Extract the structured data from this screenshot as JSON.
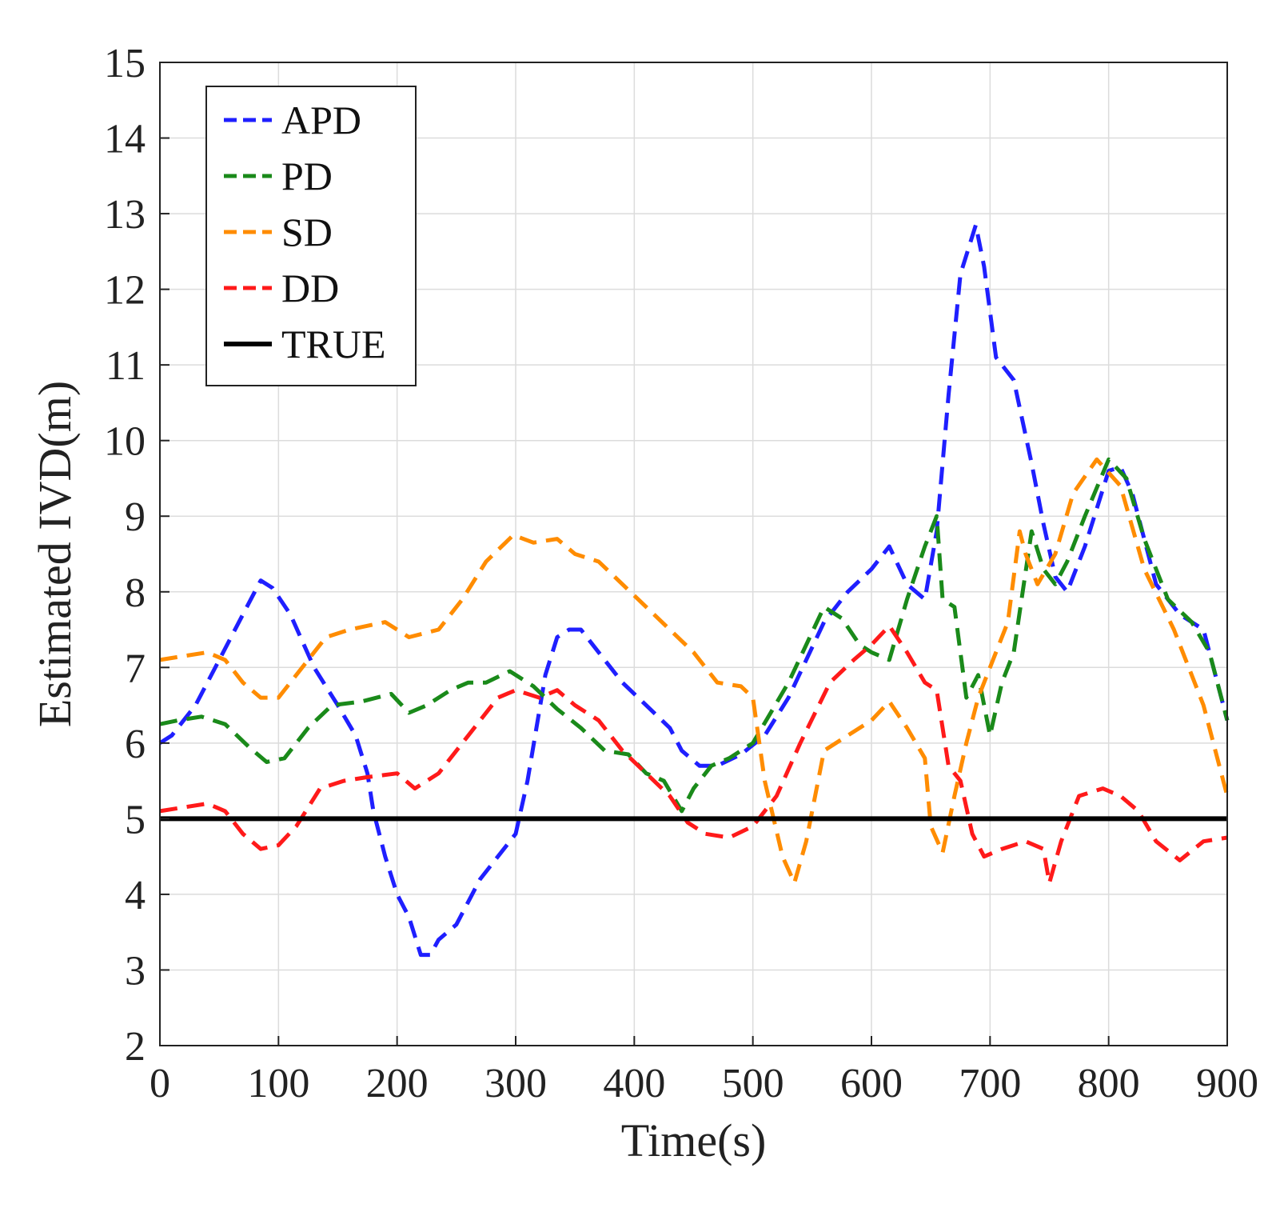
{
  "chart_data": {
    "type": "line",
    "xlabel": "Time(s)",
    "ylabel": "Estimated IVD(m)",
    "xlim": [
      0,
      900
    ],
    "ylim": [
      2,
      15
    ],
    "x_ticks": [
      0,
      100,
      200,
      300,
      400,
      500,
      600,
      700,
      800,
      900
    ],
    "y_ticks": [
      2,
      3,
      4,
      5,
      6,
      7,
      8,
      9,
      10,
      11,
      12,
      13,
      14,
      15
    ],
    "grid": true,
    "legend_position": "top-left",
    "series": [
      {
        "name": "APD",
        "color": "#1f1fff",
        "style": "dashed",
        "x": [
          0,
          10,
          30,
          50,
          70,
          85,
          95,
          110,
          130,
          150,
          165,
          175,
          180,
          190,
          200,
          210,
          220,
          228,
          235,
          250,
          270,
          290,
          300,
          310,
          325,
          335,
          345,
          355,
          370,
          390,
          410,
          430,
          440,
          455,
          470,
          490,
          510,
          530,
          560,
          580,
          600,
          615,
          630,
          645,
          655,
          665,
          675,
          688,
          695,
          705,
          720,
          735,
          745,
          755,
          765,
          780,
          800,
          810,
          820,
          840,
          860,
          880,
          900
        ],
        "y": [
          6.0,
          6.1,
          6.5,
          7.1,
          7.7,
          8.15,
          8.05,
          7.7,
          7.0,
          6.5,
          6.1,
          5.6,
          5.1,
          4.5,
          4.0,
          3.7,
          3.2,
          3.2,
          3.4,
          3.6,
          4.2,
          4.6,
          4.8,
          5.5,
          6.9,
          7.4,
          7.5,
          7.5,
          7.2,
          6.8,
          6.5,
          6.2,
          5.9,
          5.7,
          5.7,
          5.85,
          6.1,
          6.6,
          7.6,
          8.0,
          8.3,
          8.6,
          8.1,
          7.9,
          8.8,
          10.6,
          12.2,
          12.85,
          12.3,
          11.1,
          10.8,
          9.7,
          8.9,
          8.2,
          8.0,
          8.6,
          9.6,
          9.65,
          9.3,
          8.1,
          7.7,
          7.5,
          6.3
        ]
      },
      {
        "name": "PD",
        "color": "#1a8a1a",
        "style": "dashed",
        "x": [
          0,
          15,
          35,
          55,
          75,
          90,
          105,
          125,
          145,
          170,
          195,
          210,
          225,
          245,
          260,
          275,
          295,
          315,
          335,
          355,
          375,
          395,
          410,
          425,
          440,
          450,
          465,
          480,
          500,
          530,
          560,
          575,
          590,
          600,
          615,
          630,
          645,
          655,
          660,
          670,
          680,
          690,
          700,
          710,
          720,
          735,
          745,
          755,
          765,
          780,
          800,
          815,
          830,
          850,
          870,
          885,
          900
        ],
        "y": [
          6.25,
          6.3,
          6.35,
          6.25,
          5.95,
          5.75,
          5.8,
          6.2,
          6.5,
          6.55,
          6.65,
          6.4,
          6.5,
          6.7,
          6.8,
          6.8,
          6.95,
          6.75,
          6.45,
          6.2,
          5.9,
          5.85,
          5.6,
          5.5,
          5.1,
          5.4,
          5.7,
          5.8,
          6.0,
          6.8,
          7.8,
          7.65,
          7.3,
          7.2,
          7.1,
          7.9,
          8.6,
          9.0,
          7.9,
          7.8,
          6.6,
          6.9,
          6.1,
          6.8,
          7.2,
          8.8,
          8.3,
          8.1,
          8.4,
          9.0,
          9.75,
          9.5,
          8.7,
          7.9,
          7.6,
          7.2,
          6.3
        ]
      },
      {
        "name": "SD",
        "color": "#ff8c00",
        "style": "dashed",
        "x": [
          0,
          20,
          40,
          55,
          70,
          85,
          100,
          120,
          140,
          160,
          190,
          210,
          235,
          255,
          275,
          298,
          315,
          335,
          350,
          370,
          390,
          410,
          430,
          450,
          470,
          490,
          500,
          510,
          525,
          535,
          545,
          560,
          580,
          600,
          615,
          630,
          645,
          650,
          660,
          670,
          680,
          690,
          700,
          715,
          725,
          730,
          740,
          755,
          770,
          790,
          810,
          830,
          855,
          880,
          900
        ],
        "y": [
          7.1,
          7.15,
          7.2,
          7.1,
          6.8,
          6.6,
          6.6,
          7.0,
          7.4,
          7.5,
          7.6,
          7.4,
          7.5,
          7.9,
          8.4,
          8.75,
          8.65,
          8.7,
          8.5,
          8.4,
          8.1,
          7.8,
          7.5,
          7.2,
          6.8,
          6.75,
          6.6,
          5.5,
          4.5,
          4.15,
          4.7,
          5.9,
          6.1,
          6.3,
          6.55,
          6.2,
          5.8,
          4.9,
          4.55,
          5.3,
          6.0,
          6.6,
          7.0,
          7.6,
          8.8,
          8.5,
          8.1,
          8.5,
          9.3,
          9.75,
          9.4,
          8.3,
          7.5,
          6.5,
          5.3
        ]
      },
      {
        "name": "DD",
        "color": "#ff1a1a",
        "style": "dashed",
        "x": [
          0,
          20,
          40,
          55,
          70,
          85,
          100,
          115,
          135,
          155,
          175,
          200,
          215,
          235,
          260,
          285,
          300,
          320,
          335,
          350,
          370,
          390,
          410,
          430,
          445,
          460,
          480,
          500,
          520,
          540,
          565,
          585,
          600,
          615,
          630,
          645,
          655,
          665,
          675,
          685,
          695,
          710,
          730,
          745,
          750,
          760,
          775,
          795,
          810,
          825,
          840,
          860,
          880,
          900
        ],
        "y": [
          5.1,
          5.15,
          5.2,
          5.1,
          4.8,
          4.6,
          4.65,
          4.9,
          5.4,
          5.5,
          5.55,
          5.6,
          5.4,
          5.6,
          6.1,
          6.6,
          6.7,
          6.6,
          6.7,
          6.5,
          6.3,
          5.9,
          5.6,
          5.3,
          4.95,
          4.8,
          4.75,
          4.9,
          5.3,
          6.0,
          6.8,
          7.1,
          7.3,
          7.55,
          7.2,
          6.8,
          6.7,
          5.7,
          5.5,
          4.8,
          4.5,
          4.6,
          4.7,
          4.6,
          4.15,
          4.7,
          5.3,
          5.4,
          5.3,
          5.1,
          4.7,
          4.45,
          4.7,
          4.75
        ]
      },
      {
        "name": "TRUE",
        "color": "#000000",
        "style": "solid",
        "x": [
          0,
          900
        ],
        "y": [
          5,
          5
        ]
      }
    ]
  }
}
